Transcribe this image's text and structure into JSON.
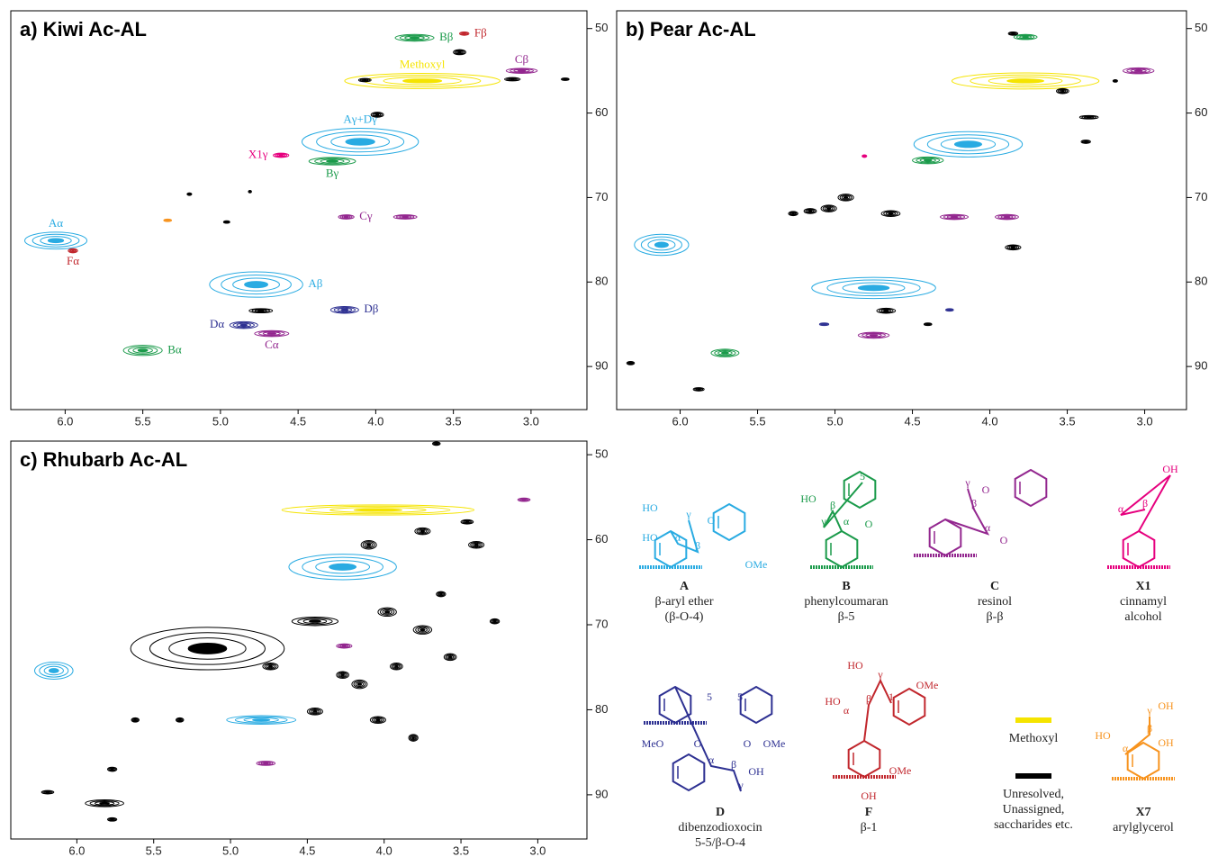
{
  "chart_data": [
    {
      "type": "contour",
      "title": "a) Kiwi Ac-AL",
      "xlim": [
        6.35,
        2.64
      ],
      "ylim": [
        47.9,
        95.1
      ],
      "xticks": [
        {
          "value": 6,
          "label": "6.0"
        },
        5.5,
        {
          "value": 5,
          "label": "5.0"
        },
        4.5,
        {
          "value": 4,
          "label": "4.0"
        },
        3.5,
        {
          "value": 3,
          "label": "3.0"
        }
      ],
      "yticks": [
        50,
        60,
        70,
        80,
        90
      ],
      "peaks": [
        {
          "x": 3.7,
          "y": 56.2,
          "dx": 1.0,
          "dy": 1.8,
          "color": "#f5e400",
          "label": "Methoxyl",
          "label_side": "above"
        },
        {
          "x": 3.75,
          "y": 51.1,
          "dx": 0.25,
          "dy": 0.8,
          "color": "#1a9a4a",
          "label": "Bβ",
          "label_side": "right"
        },
        {
          "x": 3.43,
          "y": 50.6,
          "dx": 0.06,
          "dy": 0.4,
          "color": "#c1272d",
          "label": "Fβ",
          "label_side": "right"
        },
        {
          "x": 3.06,
          "y": 55.0,
          "dx": 0.2,
          "dy": 0.6,
          "color": "#93278f",
          "label": "Cβ",
          "label_side": "above"
        },
        {
          "x": 4.07,
          "y": 56.1,
          "dx": 0.08,
          "dy": 0.4,
          "color": "#000000"
        },
        {
          "x": 3.46,
          "y": 52.8,
          "dx": 0.08,
          "dy": 0.6,
          "color": "#000000"
        },
        {
          "x": 3.99,
          "y": 60.2,
          "dx": 0.08,
          "dy": 0.6,
          "color": "#000000"
        },
        {
          "x": 3.12,
          "y": 56.0,
          "dx": 0.1,
          "dy": 0.4,
          "color": "#000000"
        },
        {
          "x": 2.78,
          "y": 56.0,
          "dx": 0.05,
          "dy": 0.3,
          "color": "#000000"
        },
        {
          "x": 4.1,
          "y": 63.4,
          "dx": 0.75,
          "dy": 3.2,
          "color": "#29abe2",
          "label": "Aγ+Dγ",
          "label_side": "above"
        },
        {
          "x": 4.28,
          "y": 65.7,
          "dx": 0.3,
          "dy": 0.9,
          "color": "#1a9a4a",
          "label": "Bγ",
          "label_side": "below"
        },
        {
          "x": 4.61,
          "y": 65.0,
          "dx": 0.1,
          "dy": 0.5,
          "color": "#e6007e",
          "label": "X1γ",
          "label_side": "left"
        },
        {
          "x": 4.19,
          "y": 72.3,
          "dx": 0.1,
          "dy": 0.5,
          "color": "#93278f",
          "label": "Cγ",
          "label_side": "right"
        },
        {
          "x": 3.81,
          "y": 72.3,
          "dx": 0.15,
          "dy": 0.5,
          "color": "#93278f"
        },
        {
          "x": 6.06,
          "y": 75.1,
          "dx": 0.4,
          "dy": 2.0,
          "color": "#29abe2",
          "label": "Aα",
          "label_side": "above"
        },
        {
          "x": 5.95,
          "y": 76.3,
          "dx": 0.06,
          "dy": 0.5,
          "color": "#c1272d",
          "label": "Fα",
          "label_side": "below"
        },
        {
          "x": 5.34,
          "y": 72.7,
          "dx": 0.05,
          "dy": 0.3,
          "color": "#f7931e"
        },
        {
          "x": 4.96,
          "y": 72.9,
          "dx": 0.04,
          "dy": 0.3,
          "color": "#000000"
        },
        {
          "x": 5.2,
          "y": 69.6,
          "dx": 0.03,
          "dy": 0.3,
          "color": "#000000"
        },
        {
          "x": 4.81,
          "y": 69.3,
          "dx": 0.02,
          "dy": 0.3,
          "color": "#000000"
        },
        {
          "x": 4.77,
          "y": 80.3,
          "dx": 0.6,
          "dy": 3.0,
          "color": "#29abe2",
          "label": "Aβ",
          "label_side": "right"
        },
        {
          "x": 4.2,
          "y": 83.3,
          "dx": 0.18,
          "dy": 0.8,
          "color": "#2e3192",
          "label": "Dβ",
          "label_side": "right"
        },
        {
          "x": 4.85,
          "y": 85.1,
          "dx": 0.18,
          "dy": 0.8,
          "color": "#2e3192",
          "label": "Dα",
          "label_side": "left"
        },
        {
          "x": 4.67,
          "y": 86.1,
          "dx": 0.22,
          "dy": 0.7,
          "color": "#93278f",
          "label": "Cα",
          "label_side": "below"
        },
        {
          "x": 5.5,
          "y": 88.1,
          "dx": 0.25,
          "dy": 1.2,
          "color": "#1a9a4a",
          "label": "Bα",
          "label_side": "right"
        },
        {
          "x": 4.74,
          "y": 83.4,
          "dx": 0.15,
          "dy": 0.5,
          "color": "#000000"
        }
      ]
    },
    {
      "type": "contour",
      "title": "b) Pear Ac-AL",
      "xlim": [
        6.41,
        2.73
      ],
      "ylim": [
        47.9,
        95.1
      ],
      "xticks": [
        {
          "value": 6,
          "label": "6.0"
        },
        5.5,
        {
          "value": 5,
          "label": "5.0"
        },
        4.5,
        {
          "value": 4,
          "label": "4.0"
        },
        3.5,
        {
          "value": 3,
          "label": "3.0"
        }
      ],
      "yticks": [
        50,
        60,
        70,
        80,
        90
      ],
      "peaks": [
        {
          "x": 3.77,
          "y": 51.0,
          "dx": 0.15,
          "dy": 0.6,
          "color": "#1a9a4a"
        },
        {
          "x": 3.85,
          "y": 50.6,
          "dx": 0.06,
          "dy": 0.4,
          "color": "#000000"
        },
        {
          "x": 3.77,
          "y": 56.2,
          "dx": 0.95,
          "dy": 1.9,
          "color": "#f5e400"
        },
        {
          "x": 3.04,
          "y": 55.0,
          "dx": 0.2,
          "dy": 0.7,
          "color": "#93278f"
        },
        {
          "x": 3.53,
          "y": 57.4,
          "dx": 0.08,
          "dy": 0.6,
          "color": "#000000"
        },
        {
          "x": 3.19,
          "y": 56.2,
          "dx": 0.03,
          "dy": 0.3,
          "color": "#000000"
        },
        {
          "x": 3.36,
          "y": 60.5,
          "dx": 0.12,
          "dy": 0.4,
          "color": "#000000"
        },
        {
          "x": 3.38,
          "y": 63.4,
          "dx": 0.06,
          "dy": 0.4,
          "color": "#000000"
        },
        {
          "x": 4.14,
          "y": 63.7,
          "dx": 0.7,
          "dy": 3.0,
          "color": "#29abe2"
        },
        {
          "x": 4.4,
          "y": 65.6,
          "dx": 0.2,
          "dy": 0.8,
          "color": "#1a9a4a"
        },
        {
          "x": 4.81,
          "y": 65.1,
          "dx": 0.03,
          "dy": 0.3,
          "color": "#e6007e"
        },
        {
          "x": 4.93,
          "y": 70.0,
          "dx": 0.1,
          "dy": 0.8,
          "color": "#000000"
        },
        {
          "x": 5.04,
          "y": 71.3,
          "dx": 0.1,
          "dy": 0.8,
          "color": "#000000"
        },
        {
          "x": 5.16,
          "y": 71.6,
          "dx": 0.08,
          "dy": 0.6,
          "color": "#000000"
        },
        {
          "x": 4.64,
          "y": 71.9,
          "dx": 0.12,
          "dy": 0.7,
          "color": "#000000"
        },
        {
          "x": 5.27,
          "y": 71.9,
          "dx": 0.06,
          "dy": 0.5,
          "color": "#000000"
        },
        {
          "x": 4.23,
          "y": 72.3,
          "dx": 0.18,
          "dy": 0.6,
          "color": "#93278f"
        },
        {
          "x": 3.89,
          "y": 72.3,
          "dx": 0.15,
          "dy": 0.6,
          "color": "#93278f"
        },
        {
          "x": 3.85,
          "y": 75.9,
          "dx": 0.1,
          "dy": 0.6,
          "color": "#000000"
        },
        {
          "x": 6.12,
          "y": 75.6,
          "dx": 0.35,
          "dy": 2.5,
          "color": "#29abe2"
        },
        {
          "x": 4.75,
          "y": 80.7,
          "dx": 0.8,
          "dy": 2.5,
          "color": "#29abe2"
        },
        {
          "x": 4.75,
          "y": 86.3,
          "dx": 0.2,
          "dy": 0.7,
          "color": "#93278f"
        },
        {
          "x": 5.71,
          "y": 88.4,
          "dx": 0.18,
          "dy": 0.9,
          "color": "#1a9a4a"
        },
        {
          "x": 6.32,
          "y": 89.6,
          "dx": 0.05,
          "dy": 0.4,
          "color": "#000000"
        },
        {
          "x": 5.88,
          "y": 92.7,
          "dx": 0.07,
          "dy": 0.4,
          "color": "#000000"
        },
        {
          "x": 4.67,
          "y": 83.4,
          "dx": 0.12,
          "dy": 0.6,
          "color": "#000000"
        },
        {
          "x": 4.4,
          "y": 85.0,
          "dx": 0.05,
          "dy": 0.3,
          "color": "#000000"
        },
        {
          "x": 5.07,
          "y": 85.0,
          "dx": 0.06,
          "dy": 0.3,
          "color": "#2e3192"
        },
        {
          "x": 4.26,
          "y": 83.3,
          "dx": 0.05,
          "dy": 0.3,
          "color": "#2e3192"
        }
      ]
    },
    {
      "type": "contour",
      "title": "c) Rhubarb Ac-AL",
      "xlim": [
        6.43,
        2.68
      ],
      "ylim": [
        48.4,
        95.2
      ],
      "xticks": [
        {
          "value": 6,
          "label": "6.0"
        },
        5.5,
        {
          "value": 5,
          "label": "5.0"
        },
        4.5,
        {
          "value": 4,
          "label": "4.0"
        },
        3.5,
        {
          "value": 3,
          "label": "3.0"
        }
      ],
      "yticks": [
        50,
        60,
        70,
        80,
        90
      ],
      "peaks": [
        {
          "x": 4.04,
          "y": 56.5,
          "dx": 1.25,
          "dy": 1.2,
          "color": "#f5e400"
        },
        {
          "x": 3.09,
          "y": 55.3,
          "dx": 0.08,
          "dy": 0.4,
          "color": "#93278f"
        },
        {
          "x": 4.27,
          "y": 63.2,
          "dx": 0.7,
          "dy": 3.0,
          "color": "#29abe2"
        },
        {
          "x": 6.15,
          "y": 75.4,
          "dx": 0.25,
          "dy": 2.0,
          "color": "#29abe2"
        },
        {
          "x": 4.8,
          "y": 81.2,
          "dx": 0.45,
          "dy": 1.0,
          "color": "#29abe2"
        },
        {
          "x": 4.77,
          "y": 86.3,
          "dx": 0.12,
          "dy": 0.5,
          "color": "#93278f"
        },
        {
          "x": 4.26,
          "y": 72.5,
          "dx": 0.1,
          "dy": 0.5,
          "color": "#93278f"
        },
        {
          "x": 5.15,
          "y": 72.8,
          "dx": 1.0,
          "dy": 5.0,
          "color": "#000000"
        },
        {
          "x": 4.1,
          "y": 60.6,
          "dx": 0.1,
          "dy": 1.0,
          "color": "#000000"
        },
        {
          "x": 3.75,
          "y": 59.0,
          "dx": 0.1,
          "dy": 0.8,
          "color": "#000000"
        },
        {
          "x": 3.4,
          "y": 60.6,
          "dx": 0.1,
          "dy": 0.8,
          "color": "#000000"
        },
        {
          "x": 3.46,
          "y": 57.9,
          "dx": 0.08,
          "dy": 0.5,
          "color": "#000000"
        },
        {
          "x": 3.66,
          "y": 48.7,
          "dx": 0.05,
          "dy": 0.4,
          "color": "#000000"
        },
        {
          "x": 3.98,
          "y": 68.5,
          "dx": 0.12,
          "dy": 1.0,
          "color": "#000000"
        },
        {
          "x": 3.75,
          "y": 70.6,
          "dx": 0.12,
          "dy": 1.0,
          "color": "#000000"
        },
        {
          "x": 4.45,
          "y": 69.6,
          "dx": 0.3,
          "dy": 1.0,
          "color": "#000000"
        },
        {
          "x": 4.16,
          "y": 77.0,
          "dx": 0.1,
          "dy": 1.0,
          "color": "#000000"
        },
        {
          "x": 3.92,
          "y": 74.9,
          "dx": 0.08,
          "dy": 0.8,
          "color": "#000000"
        },
        {
          "x": 3.57,
          "y": 73.8,
          "dx": 0.08,
          "dy": 0.8,
          "color": "#000000"
        },
        {
          "x": 3.81,
          "y": 83.3,
          "dx": 0.06,
          "dy": 0.8,
          "color": "#000000"
        },
        {
          "x": 4.45,
          "y": 80.2,
          "dx": 0.1,
          "dy": 0.8,
          "color": "#000000"
        },
        {
          "x": 4.27,
          "y": 75.9,
          "dx": 0.08,
          "dy": 0.8,
          "color": "#000000"
        },
        {
          "x": 5.77,
          "y": 87.0,
          "dx": 0.06,
          "dy": 0.5,
          "color": "#000000"
        },
        {
          "x": 6.19,
          "y": 89.7,
          "dx": 0.08,
          "dy": 0.4,
          "color": "#000000"
        },
        {
          "x": 5.82,
          "y": 91.0,
          "dx": 0.25,
          "dy": 0.8,
          "color": "#000000"
        },
        {
          "x": 5.77,
          "y": 92.9,
          "dx": 0.06,
          "dy": 0.4,
          "color": "#000000"
        },
        {
          "x": 5.62,
          "y": 81.2,
          "dx": 0.05,
          "dy": 0.5,
          "color": "#000000"
        },
        {
          "x": 5.33,
          "y": 81.2,
          "dx": 0.05,
          "dy": 0.5,
          "color": "#000000"
        },
        {
          "x": 4.74,
          "y": 74.9,
          "dx": 0.1,
          "dy": 0.8,
          "color": "#000000"
        },
        {
          "x": 4.04,
          "y": 81.2,
          "dx": 0.1,
          "dy": 0.8,
          "color": "#000000"
        },
        {
          "x": 3.28,
          "y": 69.6,
          "dx": 0.06,
          "dy": 0.6,
          "color": "#000000"
        },
        {
          "x": 3.63,
          "y": 66.4,
          "dx": 0.06,
          "dy": 0.6,
          "color": "#000000"
        }
      ]
    }
  ],
  "legend": {
    "structures": [
      {
        "id": "A",
        "color": "#29abe2",
        "lines": [
          "β-aryl ether",
          "(β-O-4)"
        ],
        "atoms": [
          "HO",
          "HO",
          "O",
          "OMe",
          "α",
          "β",
          "γ"
        ]
      },
      {
        "id": "B",
        "color": "#1a9a4a",
        "lines": [
          "phenylcoumaran",
          "β-5"
        ],
        "atoms": [
          "HO",
          "O",
          "α",
          "β",
          "γ",
          "5"
        ]
      },
      {
        "id": "C",
        "color": "#93278f",
        "lines": [
          "resinol",
          "β-β"
        ],
        "atoms": [
          "O",
          "O",
          "α",
          "β",
          "γ"
        ]
      },
      {
        "id": "X1",
        "color": "#e6007e",
        "lines": [
          "cinnamyl",
          "alcohol"
        ],
        "atoms": [
          "OH",
          "α",
          "β"
        ]
      },
      {
        "id": "D",
        "color": "#2e3192",
        "lines": [
          "dibenzodioxocin",
          "5-5/β-O-4"
        ],
        "atoms": [
          "MeO",
          "OMe",
          "O",
          "O",
          "OH",
          "5",
          "5",
          "α",
          "β",
          "γ"
        ]
      },
      {
        "id": "F",
        "color": "#c1272d",
        "lines": [
          "β-1"
        ],
        "atoms": [
          "HO",
          "HO",
          "OMe",
          "OMe",
          "OH",
          "α",
          "β",
          "γ",
          "1"
        ]
      },
      {
        "id": "X7",
        "color": "#f7931e",
        "lines": [
          "arylglycerol"
        ],
        "atoms": [
          "HO",
          "OH",
          "OH",
          "α",
          "β",
          "γ"
        ]
      }
    ],
    "keys": [
      {
        "color": "#f5e400",
        "lines": [
          "Methoxyl"
        ]
      },
      {
        "color": "#000000",
        "lines": [
          "Unresolved,",
          "Unassigned,",
          "saccharides etc."
        ]
      }
    ]
  }
}
